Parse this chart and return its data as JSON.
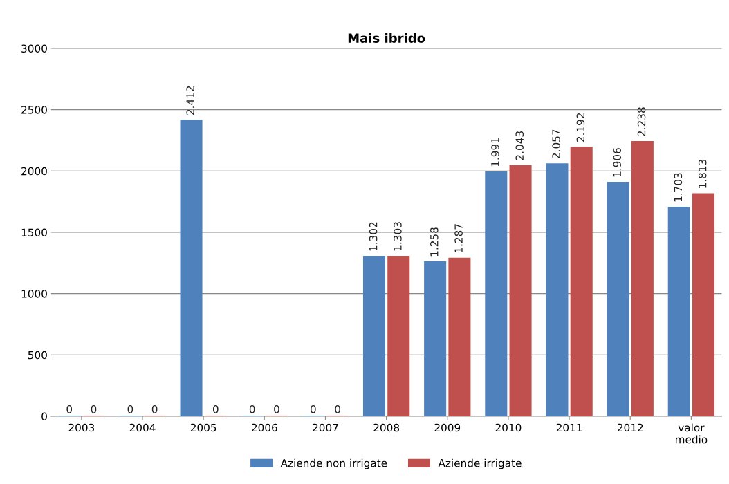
{
  "chart_data": {
    "type": "bar",
    "title": "Mais ibrido",
    "categories": [
      "2003",
      "2004",
      "2005",
      "2006",
      "2007",
      "2008",
      "2009",
      "2010",
      "2011",
      "2012",
      "valor\nmedio"
    ],
    "series": [
      {
        "name": "Aziende non irrigate",
        "color": "#4f81bd",
        "values": [
          0,
          0,
          2412,
          0,
          0,
          1302,
          1258,
          1991,
          2057,
          1906,
          1703
        ],
        "value_labels": [
          "0",
          "0",
          "2.412",
          "0",
          "0",
          "1.302",
          "1.258",
          "1.991",
          "2.057",
          "1.906",
          "1.703"
        ]
      },
      {
        "name": "Aziende irrigate",
        "color": "#c0504d",
        "values": [
          0,
          0,
          0,
          0,
          0,
          1303,
          1287,
          2043,
          2192,
          2238,
          1813
        ],
        "value_labels": [
          "0",
          "0",
          "0",
          "0",
          "0",
          "1.303",
          "1.287",
          "2.043",
          "2.192",
          "2.238",
          "1.813"
        ]
      }
    ],
    "ylim": [
      0,
      3000
    ],
    "yticks": [
      0,
      500,
      1000,
      1500,
      2000,
      2500,
      3000
    ],
    "grid": "y",
    "legend": "bottom"
  }
}
